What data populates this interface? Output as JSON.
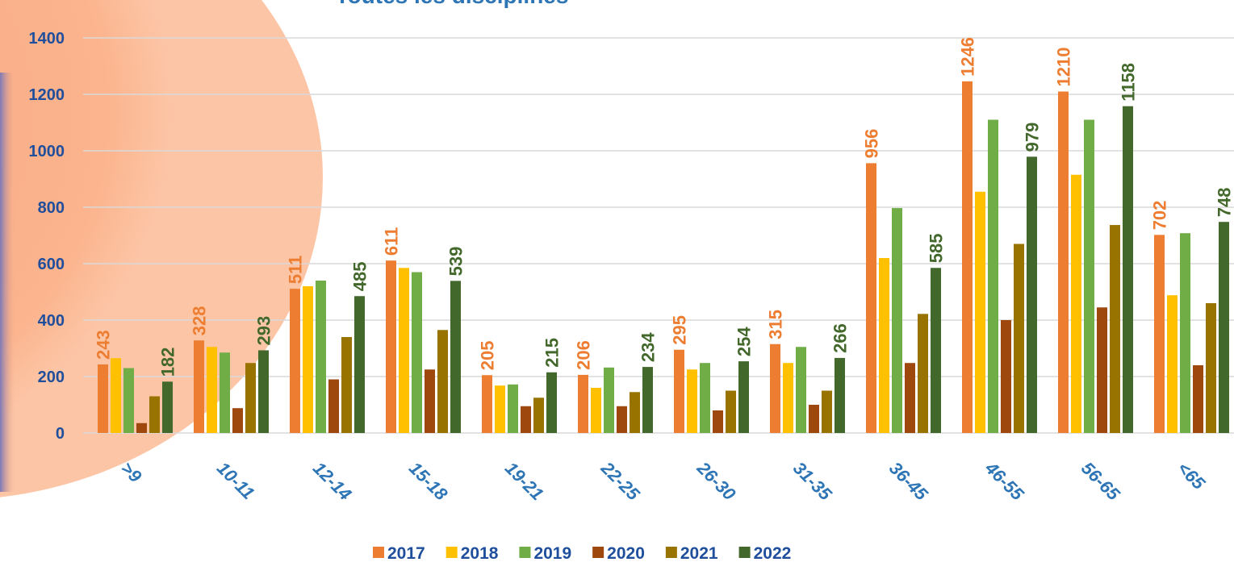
{
  "chart_data": {
    "type": "bar",
    "title": "Toutes les disciplines",
    "categories": [
      ">9",
      "10-11",
      "12-14",
      "15-18",
      "19-21",
      "22-25",
      "26-30",
      "31-35",
      "36-45",
      "46-55",
      "56-65",
      "<65"
    ],
    "series": [
      {
        "name": "2017",
        "color": "#ed7d31",
        "data_labels": true,
        "values": [
          243,
          328,
          511,
          611,
          205,
          206,
          295,
          315,
          956,
          1246,
          1210,
          702
        ]
      },
      {
        "name": "2018",
        "color": "#ffc000",
        "values": [
          265,
          305,
          520,
          585,
          168,
          160,
          225,
          248,
          620,
          855,
          915,
          488
        ]
      },
      {
        "name": "2019",
        "color": "#70ad47",
        "values": [
          230,
          285,
          540,
          570,
          172,
          232,
          248,
          305,
          797,
          1110,
          1110,
          708
        ]
      },
      {
        "name": "2020",
        "color": "#9e480e",
        "values": [
          35,
          88,
          190,
          225,
          95,
          95,
          80,
          100,
          248,
          400,
          445,
          240
        ]
      },
      {
        "name": "2021",
        "color": "#997300",
        "values": [
          130,
          248,
          340,
          365,
          125,
          145,
          150,
          150,
          422,
          670,
          737,
          460
        ]
      },
      {
        "name": "2022",
        "color": "#43682b",
        "data_labels": true,
        "values": [
          182,
          293,
          485,
          539,
          215,
          234,
          254,
          266,
          585,
          979,
          1158,
          748
        ]
      }
    ],
    "ylim": [
      0,
      1400
    ],
    "yticks": [
      0,
      200,
      400,
      600,
      800,
      1000,
      1200,
      1400
    ],
    "grid": true,
    "legend": "bottom"
  }
}
